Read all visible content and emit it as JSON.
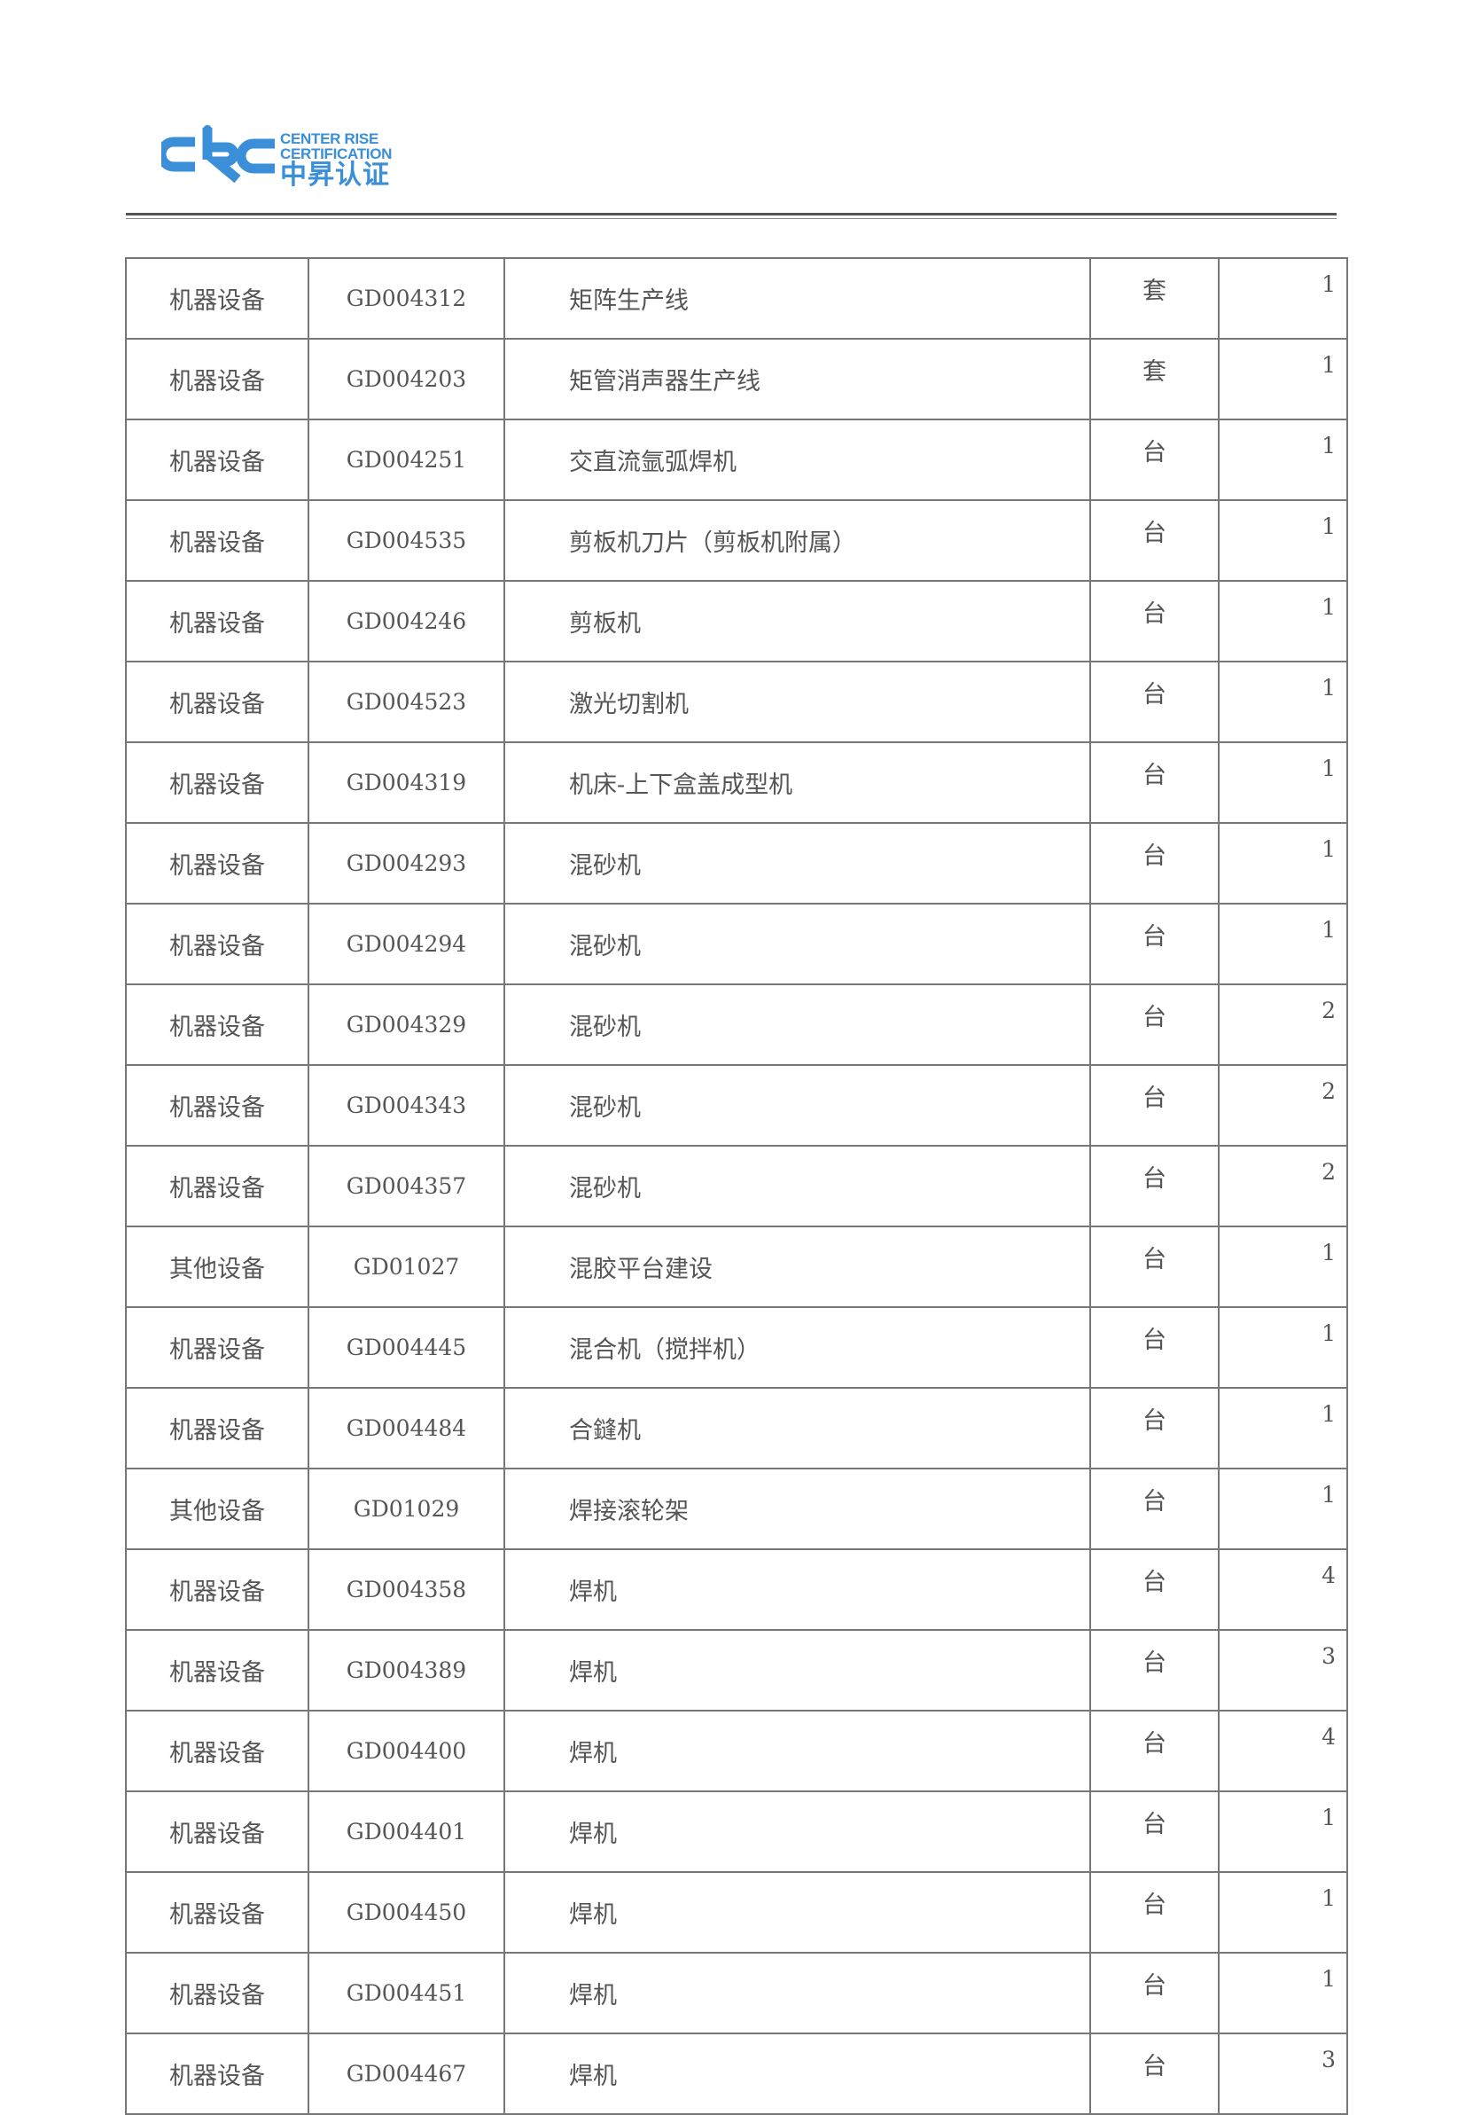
{
  "header": {
    "logo": {
      "mark": "CRC",
      "en_line1": "CENTER RISE",
      "en_line2": "CERTIFICATION",
      "cn": "中昇认证",
      "color": "#3a8fd8"
    }
  },
  "table": {
    "rows": [
      {
        "category": "机器设备",
        "code": "GD004312",
        "name": "矩阵生产线",
        "unit": "套",
        "qty": "1"
      },
      {
        "category": "机器设备",
        "code": "GD004203",
        "name": "矩管消声器生产线",
        "unit": "套",
        "qty": "1"
      },
      {
        "category": "机器设备",
        "code": "GD004251",
        "name": "交直流氩弧焊机",
        "unit": "台",
        "qty": "1"
      },
      {
        "category": "机器设备",
        "code": "GD004535",
        "name": "剪板机刀片（剪板机附属）",
        "unit": "台",
        "qty": "1"
      },
      {
        "category": "机器设备",
        "code": "GD004246",
        "name": "剪板机",
        "unit": "台",
        "qty": "1"
      },
      {
        "category": "机器设备",
        "code": "GD004523",
        "name": "激光切割机",
        "unit": "台",
        "qty": "1"
      },
      {
        "category": "机器设备",
        "code": "GD004319",
        "name": "机床-上下盒盖成型机",
        "unit": "台",
        "qty": "1"
      },
      {
        "category": "机器设备",
        "code": "GD004293",
        "name": "混砂机",
        "unit": "台",
        "qty": "1"
      },
      {
        "category": "机器设备",
        "code": "GD004294",
        "name": "混砂机",
        "unit": "台",
        "qty": "1"
      },
      {
        "category": "机器设备",
        "code": "GD004329",
        "name": "混砂机",
        "unit": "台",
        "qty": "2"
      },
      {
        "category": "机器设备",
        "code": "GD004343",
        "name": "混砂机",
        "unit": "台",
        "qty": "2"
      },
      {
        "category": "机器设备",
        "code": "GD004357",
        "name": "混砂机",
        "unit": "台",
        "qty": "2"
      },
      {
        "category": "其他设备",
        "code": "GD01027",
        "name": "混胶平台建设",
        "unit": "台",
        "qty": "1"
      },
      {
        "category": "机器设备",
        "code": "GD004445",
        "name": "混合机（搅拌机）",
        "unit": "台",
        "qty": "1"
      },
      {
        "category": "机器设备",
        "code": "GD004484",
        "name": "合鏠机",
        "unit": "台",
        "qty": "1"
      },
      {
        "category": "其他设备",
        "code": "GD01029",
        "name": "焊接滚轮架",
        "unit": "台",
        "qty": "1"
      },
      {
        "category": "机器设备",
        "code": "GD004358",
        "name": "焊机",
        "unit": "台",
        "qty": "4"
      },
      {
        "category": "机器设备",
        "code": "GD004389",
        "name": "焊机",
        "unit": "台",
        "qty": "3"
      },
      {
        "category": "机器设备",
        "code": "GD004400",
        "name": "焊机",
        "unit": "台",
        "qty": "4"
      },
      {
        "category": "机器设备",
        "code": "GD004401",
        "name": "焊机",
        "unit": "台",
        "qty": "1"
      },
      {
        "category": "机器设备",
        "code": "GD004450",
        "name": "焊机",
        "unit": "台",
        "qty": "1"
      },
      {
        "category": "机器设备",
        "code": "GD004451",
        "name": "焊机",
        "unit": "台",
        "qty": "1"
      },
      {
        "category": "机器设备",
        "code": "GD004467",
        "name": "焊机",
        "unit": "台",
        "qty": "3"
      }
    ]
  }
}
